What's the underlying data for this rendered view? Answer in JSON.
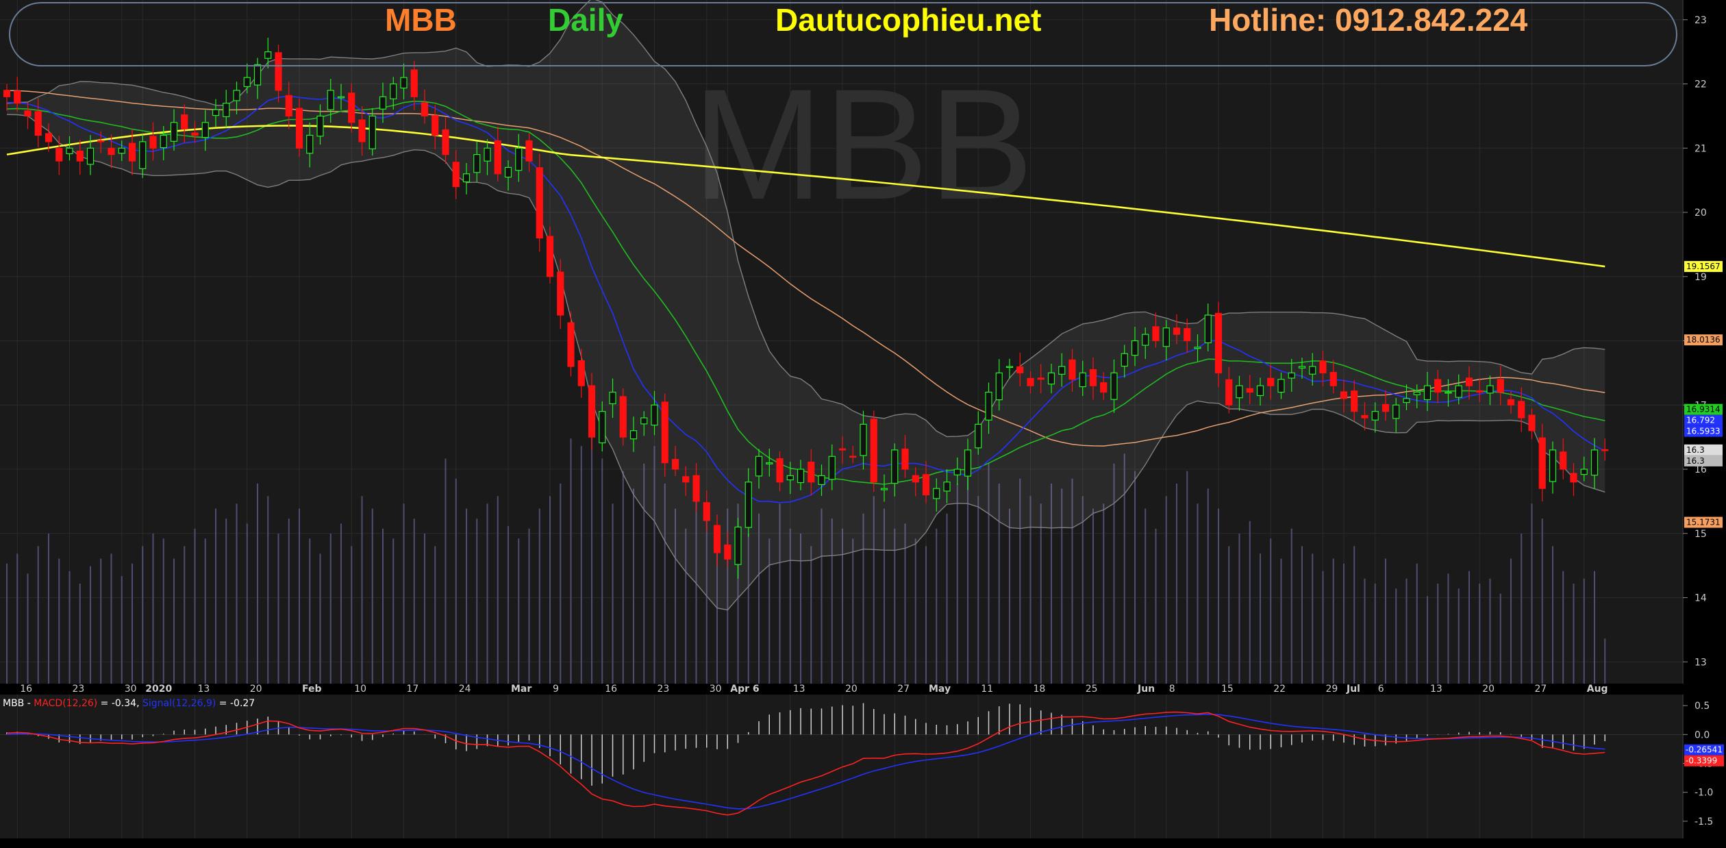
{
  "header": {
    "symbol": "MBB",
    "timeframe": "Daily",
    "website": "Dautucophieu.net",
    "hotline": "Hotline: 0912.842.224",
    "colors": {
      "symbol": "#ff7f2a",
      "timeframe": "#33cc33",
      "website": "#ffff00",
      "hotline": "#ffa860"
    }
  },
  "watermark": "MBB",
  "chart_data": [
    {
      "type": "candlestick",
      "title": "MBB",
      "ylim": [
        12.8,
        23.2
      ],
      "y_ticks": [
        13,
        14,
        15,
        16,
        17,
        18,
        19,
        20,
        21,
        22,
        23
      ],
      "x_tick_labels": [
        {
          "i": 1,
          "label": "16"
        },
        {
          "i": 6,
          "label": "23"
        },
        {
          "i": 11,
          "label": "30"
        },
        {
          "i": 13,
          "label": "2020",
          "bold": true
        },
        {
          "i": 18,
          "label": "13"
        },
        {
          "i": 23,
          "label": "20"
        },
        {
          "i": 28,
          "label": "Feb",
          "bold": true
        },
        {
          "i": 33,
          "label": "10"
        },
        {
          "i": 38,
          "label": "17"
        },
        {
          "i": 43,
          "label": "24"
        },
        {
          "i": 48,
          "label": "Mar",
          "bold": true
        },
        {
          "i": 52,
          "label": "9"
        },
        {
          "i": 57,
          "label": "16"
        },
        {
          "i": 62,
          "label": "23"
        },
        {
          "i": 67,
          "label": "30"
        },
        {
          "i": 69,
          "label": "Apr 6",
          "bold": true
        },
        {
          "i": 75,
          "label": "13"
        },
        {
          "i": 80,
          "label": "20"
        },
        {
          "i": 85,
          "label": "27"
        },
        {
          "i": 88,
          "label": "May",
          "bold": true
        },
        {
          "i": 93,
          "label": "11"
        },
        {
          "i": 98,
          "label": "18"
        },
        {
          "i": 103,
          "label": "25"
        },
        {
          "i": 108,
          "label": "Jun",
          "bold": true
        },
        {
          "i": 111,
          "label": "8"
        },
        {
          "i": 116,
          "label": "15"
        },
        {
          "i": 121,
          "label": "22"
        },
        {
          "i": 126,
          "label": "29"
        },
        {
          "i": 128,
          "label": "Jul",
          "bold": true
        },
        {
          "i": 131,
          "label": "6"
        },
        {
          "i": 136,
          "label": "13"
        },
        {
          "i": 141,
          "label": "20"
        },
        {
          "i": 146,
          "label": "27"
        },
        {
          "i": 151,
          "label": "Aug",
          "bold": true
        }
      ],
      "close": [
        21.8,
        21.7,
        21.5,
        21.2,
        21.1,
        20.8,
        21.0,
        20.8,
        21.0,
        21.1,
        20.9,
        21.0,
        20.8,
        21.1,
        21.0,
        21.2,
        21.4,
        21.3,
        21.2,
        21.4,
        21.6,
        21.7,
        21.9,
        22.1,
        22.3,
        22.5,
        21.9,
        21.5,
        21.0,
        21.2,
        21.5,
        21.9,
        21.8,
        21.4,
        21.1,
        21.5,
        21.8,
        22.0,
        22.1,
        21.8,
        21.5,
        21.2,
        20.9,
        20.4,
        20.6,
        20.9,
        21.0,
        20.6,
        20.7,
        21.0,
        20.8,
        19.6,
        19.0,
        18.4,
        17.6,
        17.3,
        16.5,
        16.9,
        17.2,
        16.5,
        16.6,
        16.8,
        17.0,
        16.1,
        16.0,
        15.8,
        15.5,
        15.2,
        14.7,
        14.6,
        15.1,
        15.8,
        16.2,
        16.1,
        15.8,
        15.9,
        16.0,
        15.8,
        15.9,
        16.2,
        16.3,
        16.2,
        16.7,
        15.8,
        15.7,
        16.3,
        16.0,
        15.8,
        15.6,
        15.7,
        15.8,
        16.0,
        16.3,
        16.7,
        17.2,
        17.5,
        17.6,
        17.5,
        17.3,
        17.4,
        17.5,
        17.6,
        17.4,
        17.5,
        17.3,
        17.2,
        17.5,
        17.8,
        18.0,
        18.1,
        18.0,
        18.2,
        18.1,
        18.0,
        17.9,
        18.4,
        17.5,
        17.0,
        17.3,
        17.2,
        17.3,
        17.3,
        17.4,
        17.5,
        17.6,
        17.6,
        17.5,
        17.3,
        17.1,
        16.9,
        16.8,
        16.9,
        16.9,
        17.0,
        17.1,
        17.2,
        17.3,
        17.2,
        17.2,
        17.3,
        17.3,
        17.2,
        17.3,
        17.2,
        17.0,
        16.8,
        16.6,
        15.7,
        16.3,
        16.0,
        15.8,
        16.0,
        16.3,
        16.3
      ],
      "volume_relative": [
        0.48,
        0.52,
        0.44,
        0.55,
        0.6,
        0.5,
        0.45,
        0.4,
        0.47,
        0.5,
        0.52,
        0.43,
        0.48,
        0.55,
        0.6,
        0.58,
        0.5,
        0.55,
        0.62,
        0.58,
        0.7,
        0.66,
        0.72,
        0.64,
        0.8,
        0.75,
        0.6,
        0.66,
        0.7,
        0.58,
        0.52,
        0.6,
        0.64,
        0.55,
        0.75,
        0.7,
        0.62,
        0.58,
        0.72,
        0.66,
        0.6,
        0.55,
        0.9,
        0.82,
        0.7,
        0.66,
        0.72,
        0.75,
        0.63,
        0.58,
        0.62,
        0.7,
        0.75,
        0.8,
        0.98,
        0.95,
        1.0,
        0.9,
        0.72,
        0.85,
        0.78,
        0.88,
        0.95,
        0.8,
        0.7,
        0.62,
        0.75,
        0.72,
        0.62,
        0.7,
        0.72,
        0.6,
        0.68,
        0.58,
        0.72,
        0.62,
        0.6,
        0.55,
        0.7,
        0.66,
        0.62,
        0.58,
        0.68,
        0.75,
        0.7,
        0.62,
        0.64,
        0.58,
        0.55,
        0.62,
        0.68,
        0.8,
        0.85,
        0.75,
        0.88,
        0.8,
        0.7,
        0.82,
        0.75,
        0.72,
        0.8,
        0.78,
        0.82,
        0.75,
        0.7,
        0.72,
        0.88,
        0.92,
        0.85,
        0.7,
        0.62,
        0.75,
        0.8,
        0.85,
        0.72,
        0.78,
        0.7,
        0.55,
        0.6,
        0.65,
        0.52,
        0.58,
        0.5,
        0.62,
        0.55,
        0.52,
        0.45,
        0.5,
        0.48,
        0.55,
        0.42,
        0.4,
        0.5,
        0.38,
        0.42,
        0.48,
        0.35,
        0.4,
        0.44,
        0.38,
        0.45,
        0.4,
        0.42,
        0.36,
        0.5,
        0.6,
        0.72,
        0.66,
        0.55,
        0.45,
        0.4,
        0.42,
        0.45,
        0.18
      ],
      "overlays": [
        {
          "name": "MA200",
          "color": "#ffff33",
          "last": 19.1567
        },
        {
          "name": "MA50",
          "color": "#e8a070",
          "last": 18.0136
        },
        {
          "name": "MA20",
          "color": "#22bb22",
          "last": 16.9314
        },
        {
          "name": "MA10",
          "color": "#2233ff",
          "last": 16.792
        },
        {
          "name": "Bollinger Bands",
          "color": "#888888",
          "upper_last": 18.0,
          "lower_last": 15.1731,
          "mid_last": 16.5933
        }
      ],
      "price_labels": [
        {
          "value": 19.1567,
          "text": "19.1567",
          "bg": "#ffff33",
          "fg": "#000000"
        },
        {
          "value": 18.0136,
          "text": "18.0136",
          "bg": "#f5a060",
          "fg": "#000000"
        },
        {
          "value": 16.9314,
          "text": "16.9314",
          "bg": "#22cc22",
          "fg": "#000000"
        },
        {
          "value": 16.792,
          "text": "16.792",
          "bg": "#2233ff",
          "fg": "#ffffff"
        },
        {
          "value": 16.5933,
          "text": "16.5933",
          "bg": "#2233ff",
          "fg": "#ffffff"
        },
        {
          "value": 16.3,
          "text": "16.3",
          "bg": "#dddddd",
          "fg": "#000000"
        },
        {
          "value": 16.3,
          "text": "16.3",
          "bg": "#bbbbbb",
          "fg": "#000000"
        },
        {
          "value": 15.1731,
          "text": "15.1731",
          "bg": "#f5a060",
          "fg": "#000000"
        }
      ]
    },
    {
      "type": "line",
      "title": "MACD",
      "legend_text": {
        "prefix": "MBB - ",
        "macd_label": "MACD(12,26)",
        "macd_value": " = -0.34, ",
        "signal_label": "Signal(12,26,9)",
        "signal_value": " = -0.27"
      },
      "ylim": [
        -1.75,
        0.62
      ],
      "y_ticks": [
        {
          "value": 0.5,
          "label": "0.5"
        },
        {
          "value": 0.0,
          "label": "0.0"
        },
        {
          "value": -0.5,
          "label": "-0.5"
        },
        {
          "value": -1.0,
          "label": "-1.0"
        },
        {
          "value": -1.5,
          "label": "-1.5"
        }
      ],
      "series": [
        {
          "name": "MACD(12,26)",
          "color": "#ff2222",
          "last": -0.3399
        },
        {
          "name": "Signal(12,26,9)",
          "color": "#2233ff",
          "last": -0.26541
        }
      ],
      "value_labels": [
        {
          "value": -0.26541,
          "text": "-0.26541",
          "bg": "#2233ff",
          "fg": "#ffffff"
        },
        {
          "value": -0.3399,
          "text": "-0.3399",
          "bg": "#ff2222",
          "fg": "#ffffff"
        }
      ]
    }
  ]
}
